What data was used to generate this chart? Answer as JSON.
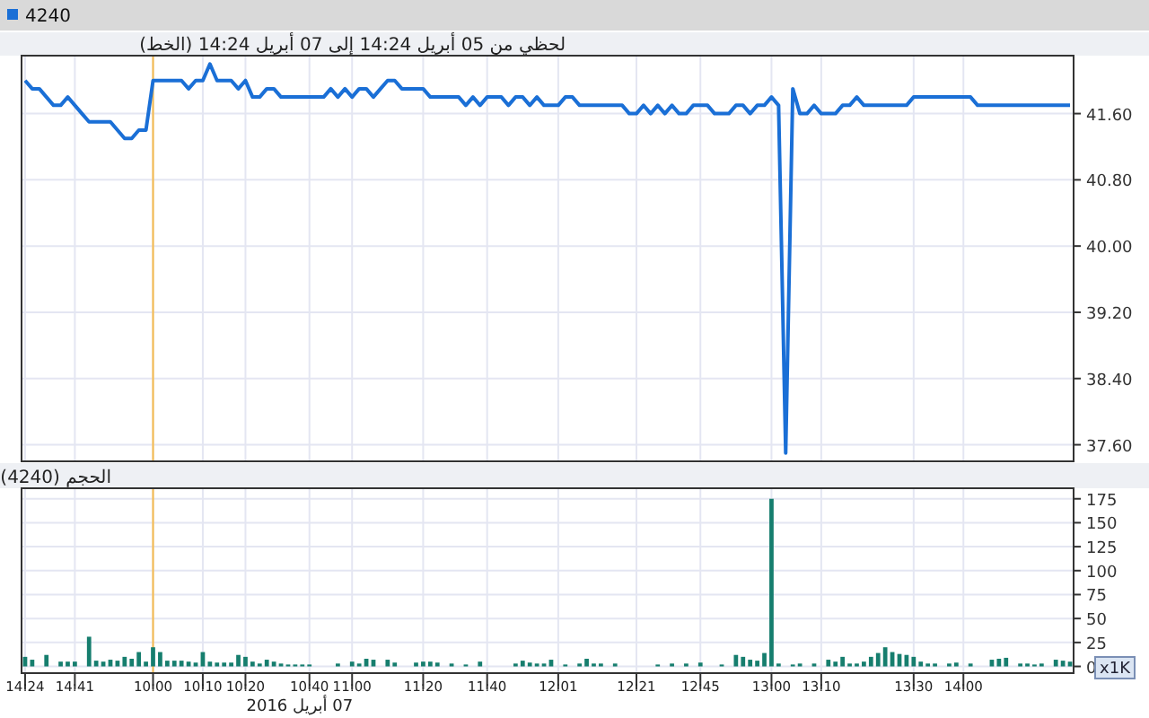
{
  "chart_data": [
    {
      "type": "line",
      "title": "لحظي من 05 أبريل 14:24 إلى 07 أبريل 14:24 (الخط)",
      "legend": "top left",
      "grid": true,
      "tick_labels": "y",
      "categories": [
        "14:24",
        null,
        null,
        null,
        null,
        null,
        null,
        "14:41",
        null,
        null,
        null,
        null,
        null,
        null,
        null,
        null,
        null,
        null,
        "10:00",
        null,
        null,
        null,
        null,
        null,
        null,
        "10:10",
        null,
        null,
        null,
        null,
        null,
        "10:20",
        null,
        null,
        null,
        null,
        null,
        null,
        null,
        null,
        "10:40",
        null,
        null,
        null,
        null,
        null,
        "11:00",
        null,
        null,
        null,
        null,
        null,
        null,
        null,
        null,
        null,
        "11:20",
        null,
        null,
        null,
        null,
        null,
        null,
        null,
        null,
        "11:40",
        null,
        null,
        null,
        null,
        null,
        null,
        null,
        null,
        null,
        "12:01",
        null,
        null,
        null,
        null,
        null,
        null,
        null,
        null,
        null,
        null,
        "12:21",
        null,
        null,
        null,
        null,
        null,
        null,
        null,
        null,
        "12:45",
        null,
        null,
        null,
        null,
        null,
        null,
        null,
        null,
        null,
        "13:00",
        null,
        null,
        null,
        null,
        null,
        null,
        "13:10",
        null,
        null,
        null,
        null,
        null,
        null,
        null,
        null,
        null,
        null,
        null,
        null,
        "13:30",
        null,
        null,
        null,
        null,
        null,
        null,
        "14:00",
        null,
        null,
        null,
        null,
        null,
        null,
        null,
        null,
        null,
        null,
        null,
        null,
        null,
        null,
        null
      ],
      "ylim": [
        37.4,
        42.3
      ],
      "yticks": [
        {
          "value": 37.6,
          "label": "37.60"
        },
        {
          "value": 38.4,
          "label": "38.40"
        },
        {
          "value": 39.2,
          "label": "39.20"
        },
        {
          "value": 40,
          "label": "40.00"
        },
        {
          "value": 40.8,
          "label": "40.80"
        },
        {
          "value": 41.6,
          "label": "41.60"
        }
      ],
      "ref_lines": [
        {
          "axis": "x",
          "value": "10:00",
          "color": "#f5b94a"
        }
      ],
      "series": [
        {
          "name": "4240",
          "color": "#1a6fd6",
          "values": [
            42.0,
            41.9,
            41.9,
            41.8,
            41.7,
            41.7,
            41.8,
            41.7,
            41.6,
            41.5,
            41.5,
            41.5,
            41.5,
            41.4,
            41.3,
            41.3,
            41.4,
            41.4,
            42.0,
            42.0,
            42.0,
            42.0,
            42.0,
            41.9,
            42.0,
            42.0,
            42.2,
            42.0,
            42.0,
            42.0,
            41.9,
            42.0,
            41.8,
            41.8,
            41.9,
            41.9,
            41.8,
            41.8,
            41.8,
            41.8,
            41.8,
            41.8,
            41.8,
            41.9,
            41.8,
            41.9,
            41.8,
            41.9,
            41.9,
            41.8,
            41.9,
            42.0,
            42.0,
            41.9,
            41.9,
            41.9,
            41.9,
            41.8,
            41.8,
            41.8,
            41.8,
            41.8,
            41.7,
            41.8,
            41.7,
            41.8,
            41.8,
            41.8,
            41.7,
            41.8,
            41.8,
            41.7,
            41.8,
            41.7,
            41.7,
            41.7,
            41.8,
            41.8,
            41.7,
            41.7,
            41.7,
            41.7,
            41.7,
            41.7,
            41.7,
            41.6,
            41.6,
            41.7,
            41.6,
            41.7,
            41.6,
            41.7,
            41.6,
            41.6,
            41.7,
            41.7,
            41.7,
            41.6,
            41.6,
            41.6,
            41.7,
            41.7,
            41.6,
            41.7,
            41.7,
            41.8,
            41.7,
            37.5,
            41.9,
            41.6,
            41.6,
            41.7,
            41.6,
            41.6,
            41.6,
            41.7,
            41.7,
            41.8,
            41.7,
            41.7,
            41.7,
            41.7,
            41.7,
            41.7,
            41.7,
            41.8,
            41.8,
            41.8,
            41.8,
            41.8,
            41.8,
            41.8,
            41.8,
            41.8,
            41.7,
            41.7,
            41.7,
            41.7,
            41.7,
            41.7,
            41.7,
            41.7,
            41.7,
            41.7,
            41.7,
            41.7,
            41.7,
            41.7
          ]
        }
      ]
    },
    {
      "type": "bar",
      "title": "الحجم (4240)",
      "ylabel": "x1K",
      "grid": true,
      "categories": [
        "14:24",
        null,
        null,
        null,
        null,
        null,
        null,
        "14:41",
        null,
        null,
        null,
        null,
        null,
        null,
        null,
        null,
        null,
        null,
        "10:00",
        null,
        null,
        null,
        null,
        null,
        null,
        "10:10",
        null,
        null,
        null,
        null,
        null,
        "10:20",
        null,
        null,
        null,
        null,
        null,
        null,
        null,
        null,
        "10:40",
        null,
        null,
        null,
        null,
        null,
        "11:00",
        null,
        null,
        null,
        null,
        null,
        null,
        null,
        null,
        null,
        "11:20",
        null,
        null,
        null,
        null,
        null,
        null,
        null,
        null,
        "11:40",
        null,
        null,
        null,
        null,
        null,
        null,
        null,
        null,
        null,
        "12:01",
        null,
        null,
        null,
        null,
        null,
        null,
        null,
        null,
        null,
        null,
        "12:21",
        null,
        null,
        null,
        null,
        null,
        null,
        null,
        null,
        "12:45",
        null,
        null,
        null,
        null,
        null,
        null,
        null,
        null,
        null,
        "13:00",
        null,
        null,
        null,
        null,
        null,
        null,
        "13:10",
        null,
        null,
        null,
        null,
        null,
        null,
        null,
        null,
        null,
        null,
        null,
        null,
        "13:30",
        null,
        null,
        null,
        null,
        null,
        null,
        "14:00",
        null,
        null,
        null,
        null,
        null,
        null,
        null,
        null,
        null,
        null,
        null,
        null,
        null,
        null,
        null
      ],
      "ylim": [
        -7,
        186
      ],
      "yticks": [
        0,
        25,
        50,
        75,
        100,
        125,
        150,
        175
      ],
      "ref_lines": [
        {
          "axis": "x",
          "value": "10:00",
          "color": "#f5b94a"
        }
      ],
      "annotations": [
        "07 أبريل 2016"
      ],
      "series": [
        {
          "color": "#167e6e",
          "values": [
            10,
            7,
            null,
            12,
            null,
            5,
            5,
            5,
            null,
            31,
            6,
            5,
            7,
            6,
            10,
            8,
            15,
            5,
            20,
            15,
            6,
            6,
            6,
            5,
            4,
            15,
            5,
            4,
            4,
            4,
            12,
            10,
            5,
            3,
            7,
            5,
            3,
            2,
            2,
            2,
            2,
            null,
            null,
            null,
            3,
            null,
            5,
            3,
            8,
            7,
            null,
            7,
            4,
            null,
            null,
            4,
            5,
            5,
            4,
            null,
            3,
            null,
            2,
            null,
            5,
            null,
            null,
            null,
            null,
            3,
            6,
            4,
            3,
            3,
            7,
            null,
            2,
            null,
            3,
            8,
            3,
            3,
            null,
            3,
            null,
            null,
            null,
            null,
            null,
            2,
            null,
            3,
            null,
            3,
            null,
            4,
            null,
            null,
            2,
            null,
            12,
            10,
            7,
            6,
            14,
            175,
            3,
            null,
            2,
            3,
            null,
            3,
            null,
            7,
            5,
            10,
            3,
            3,
            5,
            10,
            14,
            20,
            15,
            13,
            12,
            10,
            5,
            3,
            3,
            null,
            3,
            4,
            null,
            3,
            null,
            null,
            7,
            8,
            9,
            null,
            3,
            3,
            2,
            3,
            null,
            7,
            6,
            5
          ]
        }
      ]
    }
  ]
}
